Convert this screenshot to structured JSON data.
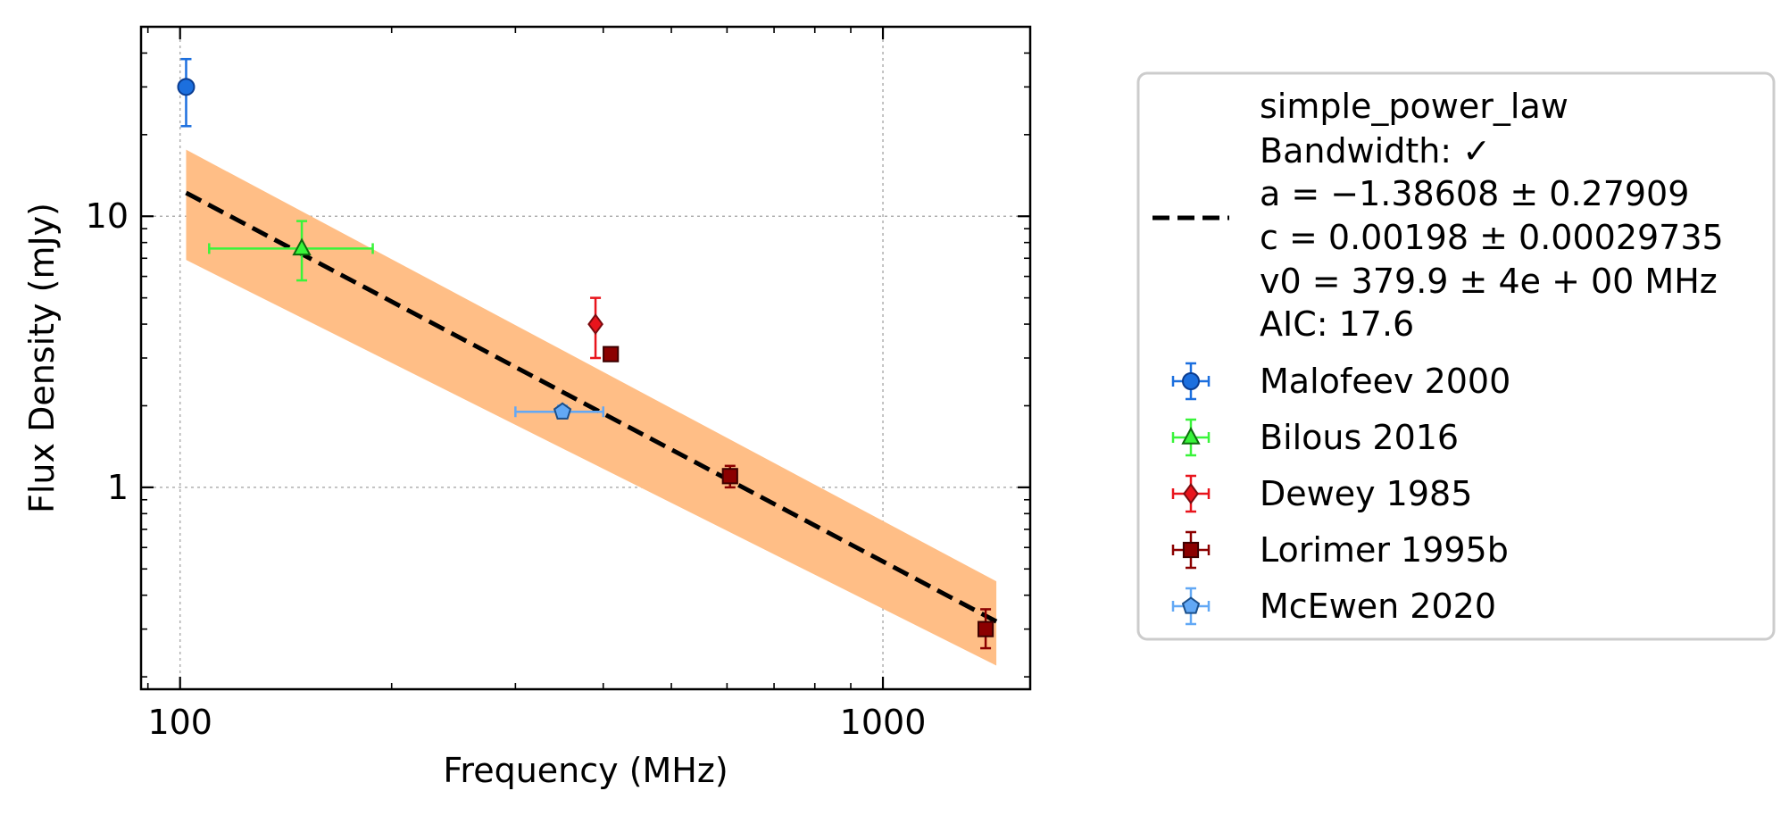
{
  "chart_data": {
    "type": "scatter",
    "xlabel": "Frequency (MHz)",
    "ylabel": "Flux Density (mJy)",
    "xscale": "log",
    "yscale": "log",
    "xlim": [
      88,
      1620
    ],
    "ylim": [
      0.18,
      50
    ],
    "x_ticks": [
      {
        "value": 100,
        "label": "100"
      },
      {
        "value": 1000,
        "label": "1000"
      }
    ],
    "y_ticks": [
      {
        "value": 1,
        "label": "1"
      },
      {
        "value": 10,
        "label": "10"
      }
    ],
    "grid": true,
    "legend_position": "outside-right",
    "fit": {
      "model": "simple_power_law",
      "bandwidth_label": "Bandwidth: ✓",
      "a_label": "a = −1.38608 ± 0.27909",
      "c_label": "c = 0.00198 ± 0.00029735",
      "v0_label": "v0 = 379.9 ± 4e + 00 MHz",
      "aic_label": "AIC: 17.6",
      "a": -1.38608,
      "v0": 379.9,
      "line_points": [
        {
          "x": 102,
          "y": 12.2
        },
        {
          "x": 1450,
          "y": 0.32
        }
      ],
      "band_upper": [
        {
          "x": 102,
          "y": 17.6
        },
        {
          "x": 1450,
          "y": 0.45
        }
      ],
      "band_lower": [
        {
          "x": 102,
          "y": 6.9
        },
        {
          "x": 1450,
          "y": 0.22
        }
      ],
      "line_color": "#000000",
      "band_color": "#ffbe86"
    },
    "series": [
      {
        "name": "Malofeev 2000",
        "marker": "circle",
        "color": "#1c6fde",
        "edge": "#0b3d91",
        "points": [
          {
            "x": 102,
            "y": 30,
            "y_low": 21.5,
            "y_high": 38,
            "x_low": 102,
            "x_high": 102
          }
        ]
      },
      {
        "name": "Bilous 2016",
        "marker": "triangle",
        "color": "#39f43a",
        "edge": "#0d6b0d",
        "points": [
          {
            "x": 149,
            "y": 7.6,
            "y_low": 5.8,
            "y_high": 9.6,
            "x_low": 110,
            "x_high": 188
          }
        ]
      },
      {
        "name": "Dewey 1985",
        "marker": "diamond",
        "color": "#e8141c",
        "edge": "#7a0a0e",
        "points": [
          {
            "x": 390,
            "y": 4.0,
            "y_low": 3.0,
            "y_high": 5.0,
            "x_low": 390,
            "x_high": 390
          }
        ]
      },
      {
        "name": "Lorimer 1995b",
        "marker": "square",
        "color": "#8b0000",
        "edge": "#3d0000",
        "points": [
          {
            "x": 410,
            "y": 3.1,
            "y_low": 3.0,
            "y_high": 3.2,
            "x_low": 410,
            "x_high": 410
          },
          {
            "x": 606,
            "y": 1.1,
            "y_low": 1.0,
            "y_high": 1.2,
            "x_low": 606,
            "x_high": 606
          },
          {
            "x": 1400,
            "y": 0.3,
            "y_low": 0.255,
            "y_high": 0.355,
            "x_low": 1400,
            "x_high": 1400
          }
        ]
      },
      {
        "name": "McEwen 2020",
        "marker": "pentagon",
        "color": "#62a8f5",
        "edge": "#1b4f8a",
        "points": [
          {
            "x": 350,
            "y": 1.9,
            "y_low": 1.8,
            "y_high": 2.0,
            "x_low": 300,
            "x_high": 400
          }
        ]
      }
    ]
  }
}
